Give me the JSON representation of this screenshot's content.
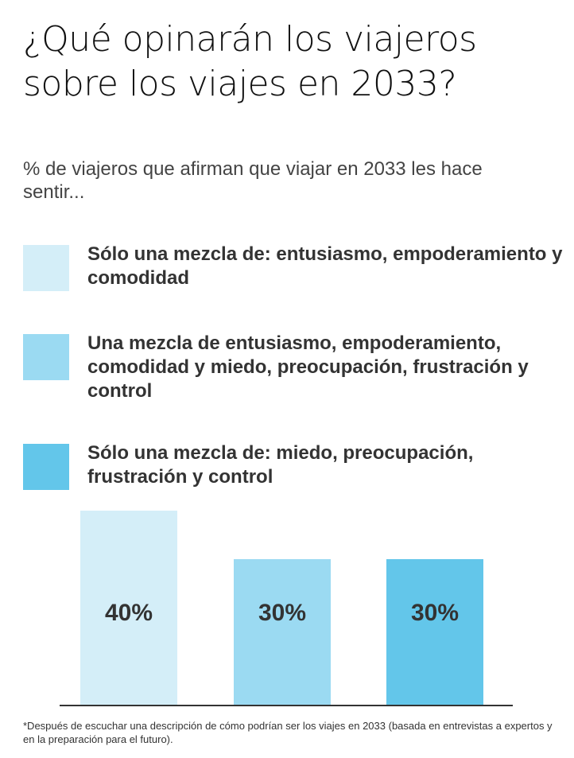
{
  "header": {
    "title": "¿Qué opinarán los viajeros sobre los viajes en 2033?",
    "subtitle": "% de viajeros que afirman que viajar en 2033 les hace sentir..."
  },
  "legend": {
    "items": [
      {
        "label": "Sólo una mezcla de: entusiasmo, empoderamiento y comodidad",
        "color": "#d4eef8"
      },
      {
        "label": "Una mezcla de entusiasmo, empoderamiento, comodidad y miedo, preocupación, frustración y control",
        "color": "#9bdaf2"
      },
      {
        "label": "Sólo una mezcla de: miedo, preocupación, frustración y control",
        "color": "#63c6ea"
      }
    ]
  },
  "chart_data": {
    "type": "bar",
    "title": "¿Qué opinarán los viajeros sobre los viajes en 2033?",
    "subtitle": "% de viajeros que afirman que viajar en 2033 les hace sentir...",
    "categories": [
      "Sólo una mezcla de: entusiasmo, empoderamiento y comodidad",
      "Una mezcla de entusiasmo, empoderamiento, comodidad y miedo, preocupación, frustración y control",
      "Sólo una mezcla de: miedo, preocupación, frustración y control"
    ],
    "values": [
      40,
      30,
      30
    ],
    "data_labels": [
      "40%",
      "30%",
      "30%"
    ],
    "colors": [
      "#d4eef8",
      "#9bdaf2",
      "#63c6ea"
    ],
    "ylim": [
      0,
      40
    ],
    "grid": false,
    "legend_position": "top"
  },
  "footnote": "*Después de escuchar una descripción de cómo podrían ser los viajes en 2033 (basada en entrevistas a expertos y en la preparación para el futuro)."
}
